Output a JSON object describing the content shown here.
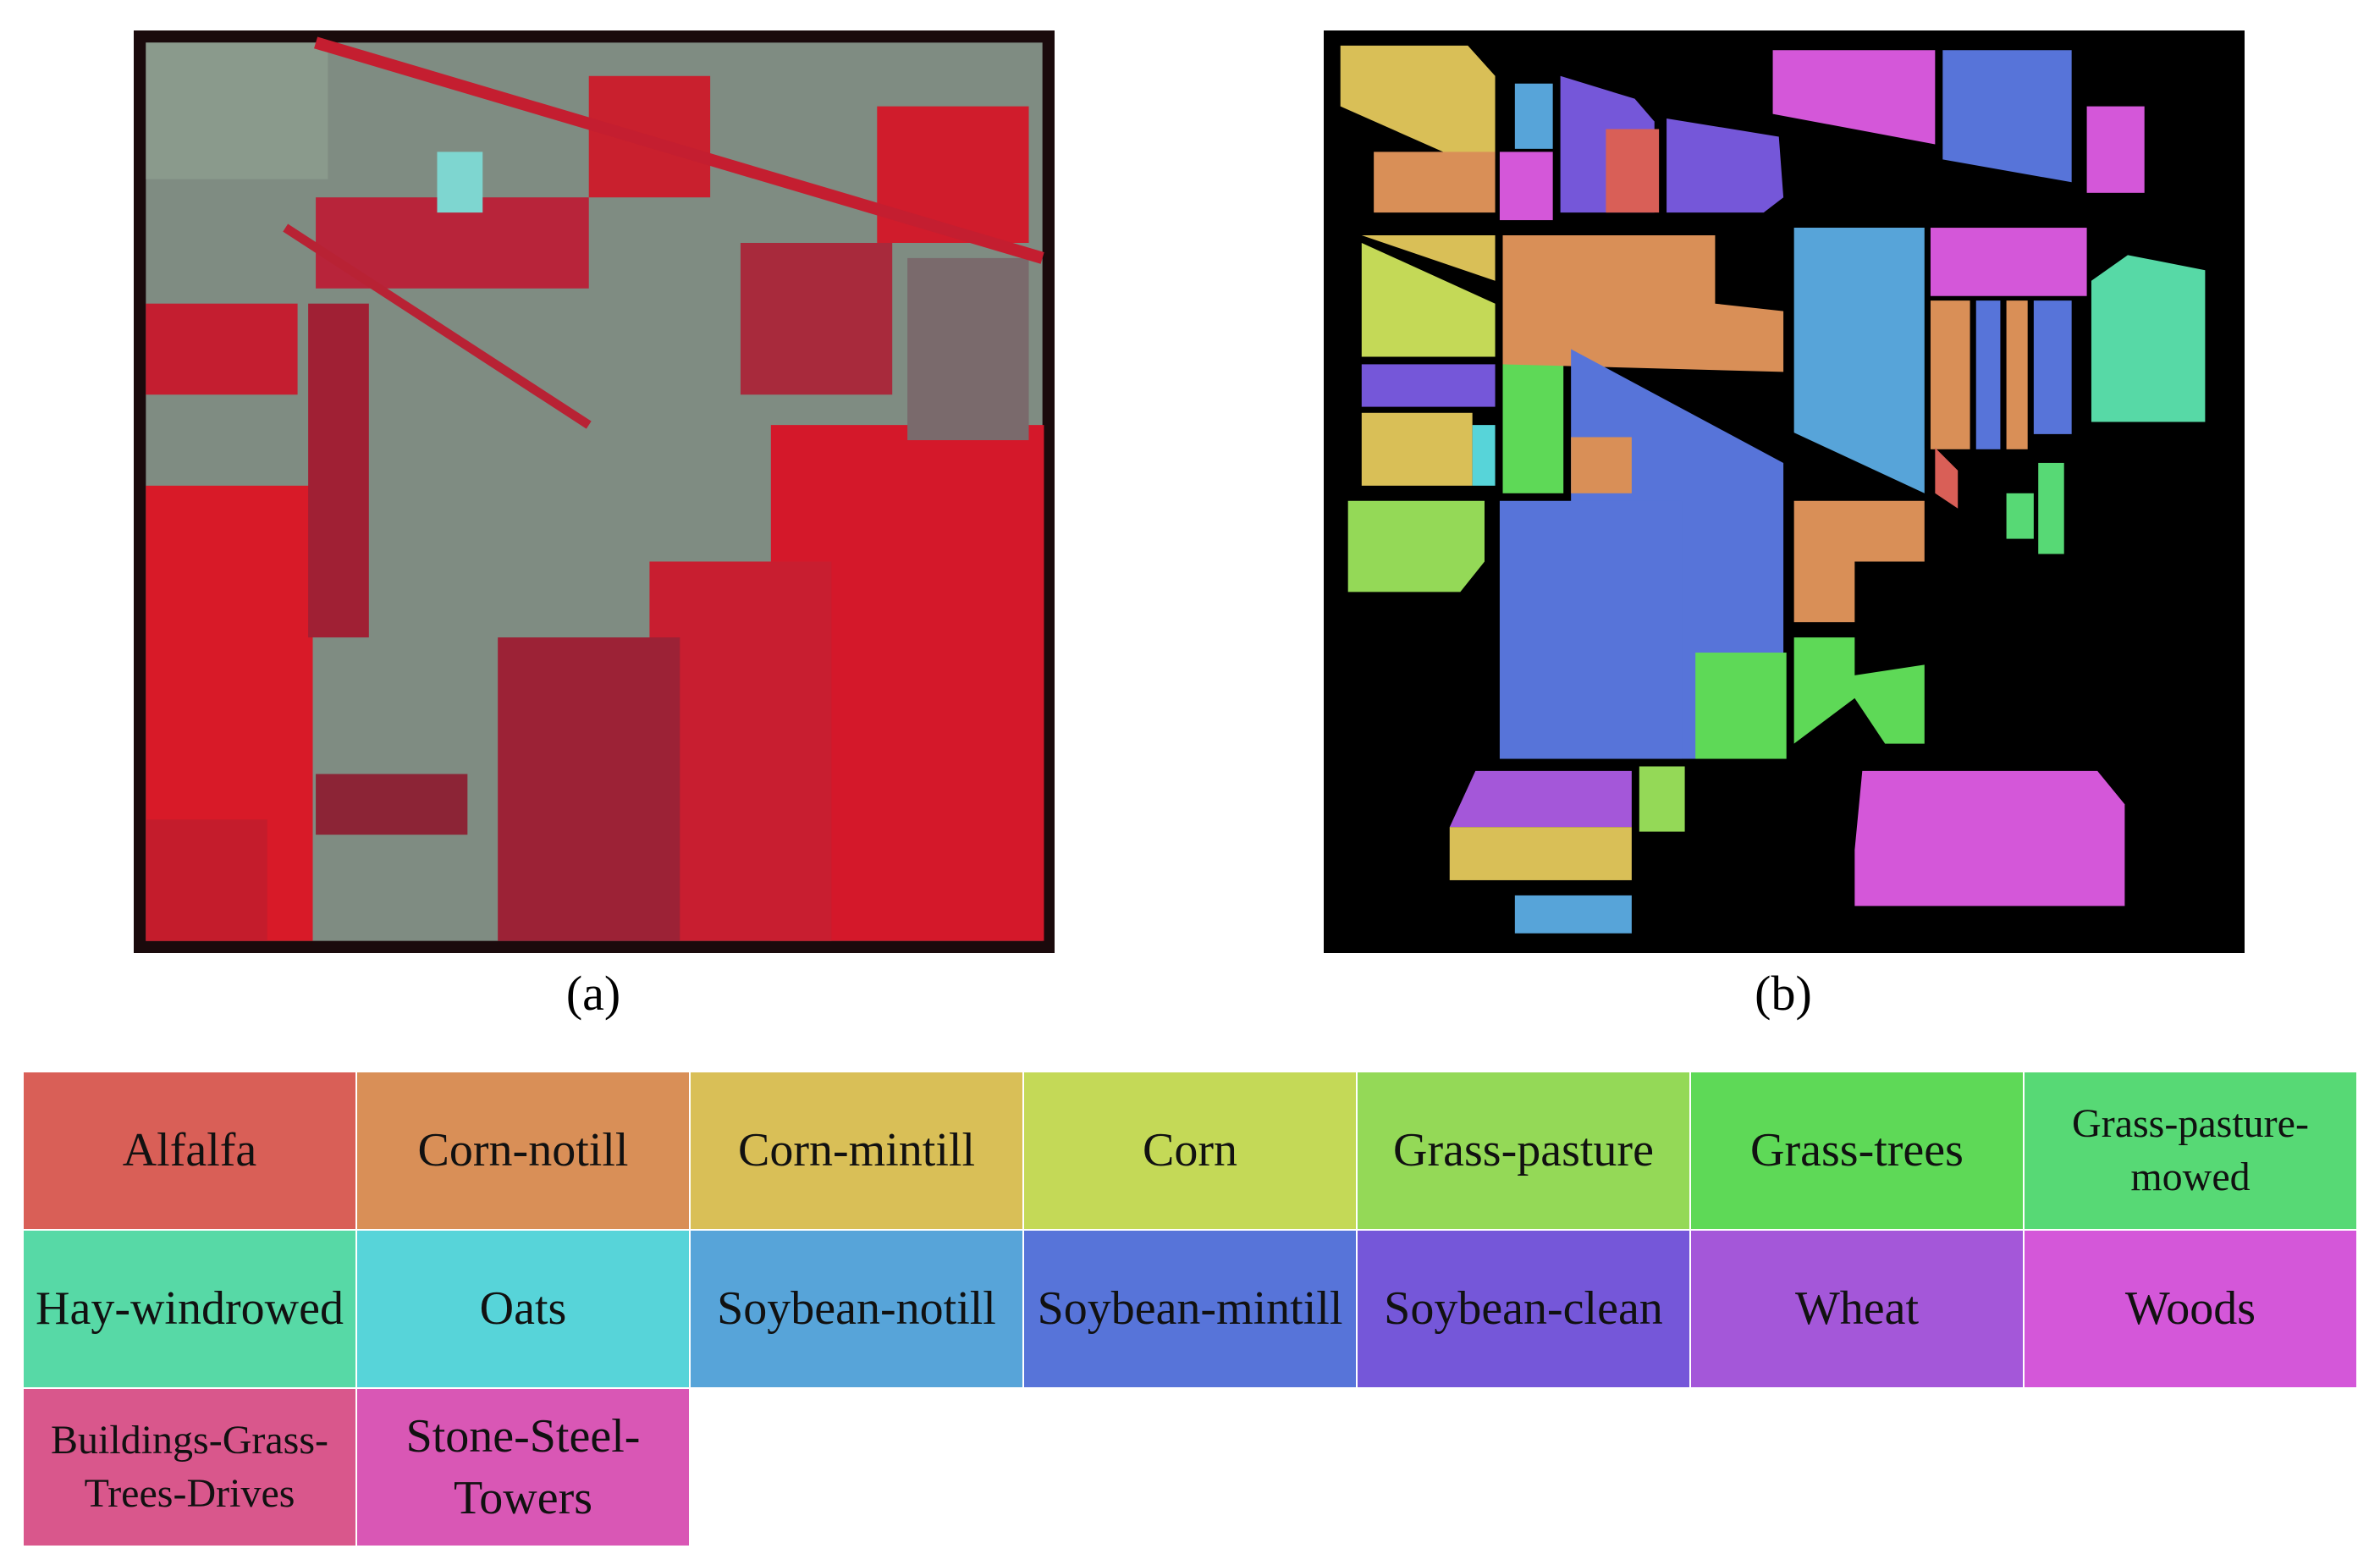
{
  "panels": [
    {
      "caption": "(a)"
    },
    {
      "caption": "(b)"
    }
  ],
  "legend": [
    {
      "name": "Alfalfa",
      "color": "#d95f57"
    },
    {
      "name": "Corn-notill",
      "color": "#d98f57"
    },
    {
      "name": "Corn-mintill",
      "color": "#d9bf57"
    },
    {
      "name": "Corn",
      "color": "#c4d957"
    },
    {
      "name": "Grass-pasture",
      "color": "#94d957"
    },
    {
      "name": "Grass-trees",
      "color": "#5ed957"
    },
    {
      "name": "Grass-pasture-mowed",
      "color": "#57d975"
    },
    {
      "name": "Hay-windrowed",
      "color": "#57d9a6"
    },
    {
      "name": "Oats",
      "color": "#57d4d9"
    },
    {
      "name": "Soybean-notill",
      "color": "#57a4d9"
    },
    {
      "name": "Soybean-mintill",
      "color": "#5774d9"
    },
    {
      "name": "Soybean-clean",
      "color": "#7557d9"
    },
    {
      "name": "Wheat",
      "color": "#a457d9"
    },
    {
      "name": "Woods",
      "color": "#d457d9"
    },
    {
      "name": "Buildings-Grass-Trees-Drives",
      "color": "#d9578c"
    },
    {
      "name": "Stone-Steel-Towers",
      "color": "#d957b5"
    }
  ]
}
